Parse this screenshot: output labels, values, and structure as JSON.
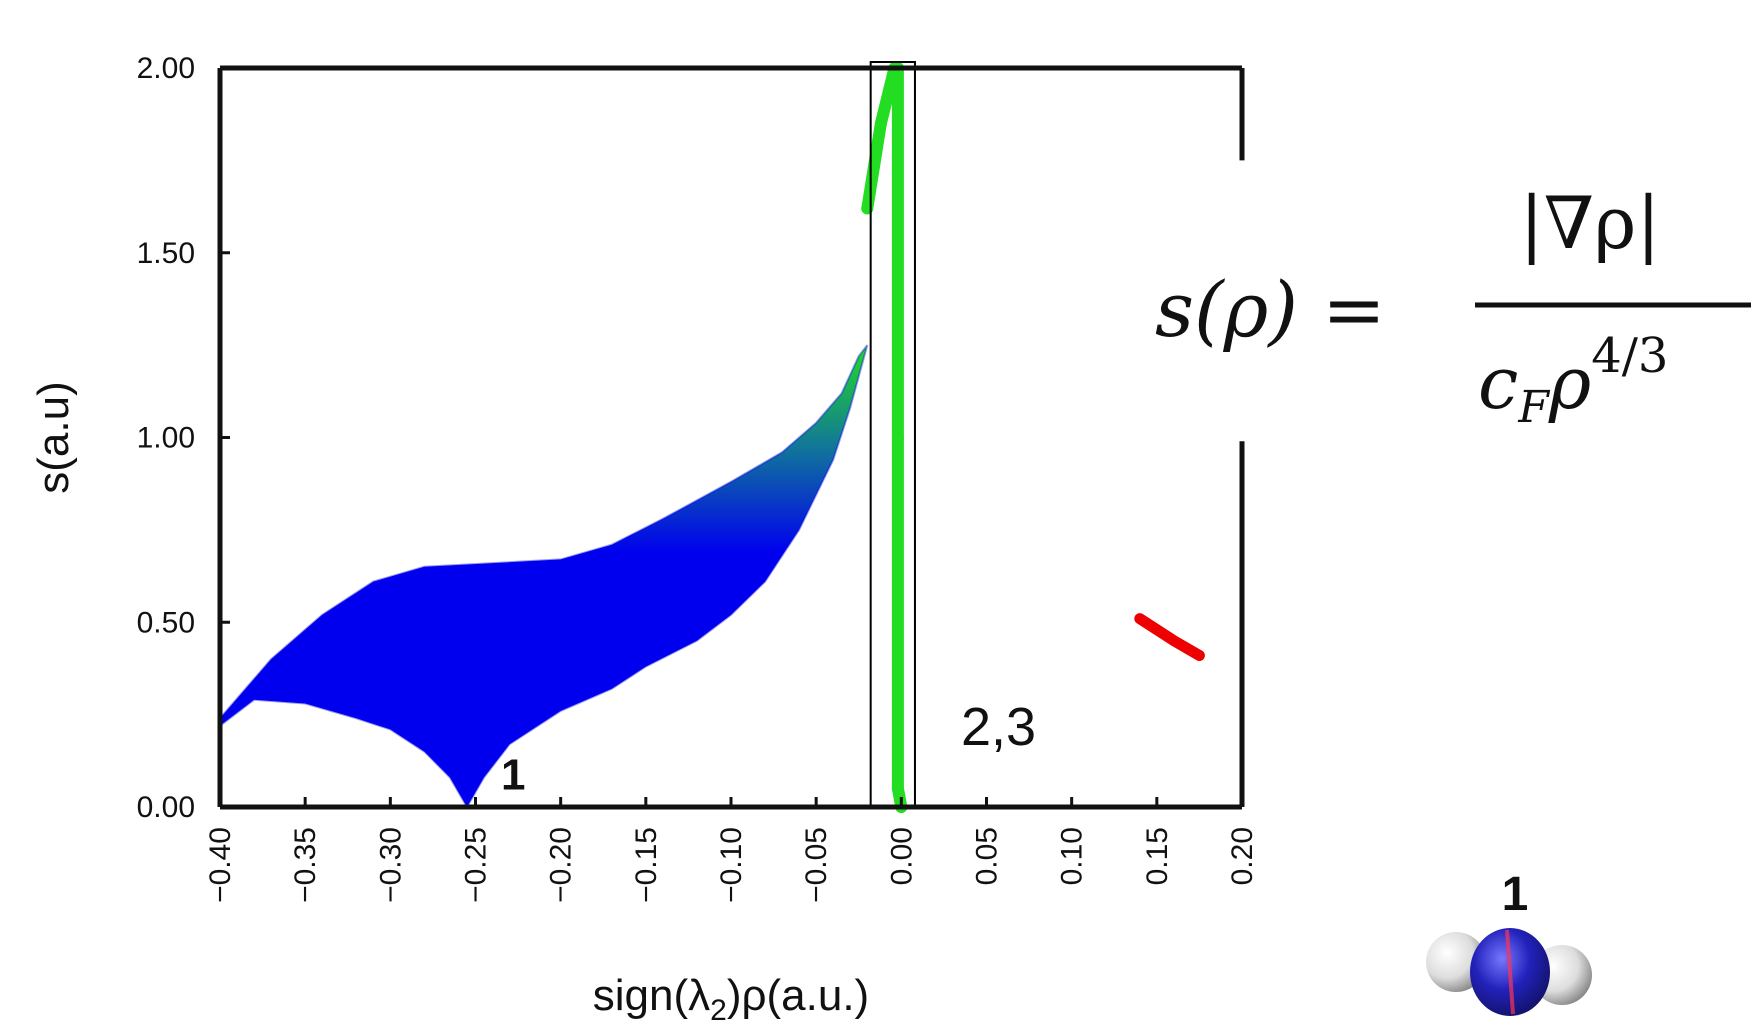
{
  "chart_data": {
    "type": "scatter",
    "title": "",
    "xlabel": "sign(λ2)ρ(a.u.)",
    "ylabel": "s(a.u)",
    "xlim": [
      -0.4,
      0.2
    ],
    "ylim": [
      0.0,
      2.0
    ],
    "x_ticks": [
      "-0.40",
      "-0.35",
      "-0.30",
      "-0.25",
      "-0.20",
      "-0.15",
      "-0.10",
      "-0.05",
      "0.00",
      "0.05",
      "0.10",
      "0.15",
      "0.20"
    ],
    "y_ticks": [
      "0.00",
      "0.50",
      "1.00",
      "1.50",
      "2.00"
    ],
    "grid": false,
    "series": [
      {
        "color": "#0000ee",
        "band_lower": [
          [
            -0.4,
            0.22
          ],
          [
            -0.38,
            0.29
          ],
          [
            -0.35,
            0.28
          ],
          [
            -0.32,
            0.24
          ],
          [
            -0.3,
            0.21
          ],
          [
            -0.28,
            0.15
          ],
          [
            -0.265,
            0.08
          ],
          [
            -0.255,
            0.0
          ],
          [
            -0.245,
            0.08
          ],
          [
            -0.23,
            0.17
          ],
          [
            -0.2,
            0.26
          ],
          [
            -0.17,
            0.32
          ],
          [
            -0.15,
            0.38
          ],
          [
            -0.12,
            0.45
          ],
          [
            -0.1,
            0.52
          ],
          [
            -0.08,
            0.61
          ],
          [
            -0.06,
            0.75
          ],
          [
            -0.04,
            0.94
          ],
          [
            -0.03,
            1.08
          ],
          [
            -0.02,
            1.25
          ]
        ],
        "band_upper": [
          [
            -0.4,
            0.24
          ],
          [
            -0.37,
            0.4
          ],
          [
            -0.34,
            0.52
          ],
          [
            -0.31,
            0.61
          ],
          [
            -0.28,
            0.65
          ],
          [
            -0.24,
            0.66
          ],
          [
            -0.2,
            0.67
          ],
          [
            -0.17,
            0.71
          ],
          [
            -0.14,
            0.78
          ],
          [
            -0.1,
            0.88
          ],
          [
            -0.07,
            0.96
          ],
          [
            -0.05,
            1.04
          ],
          [
            -0.035,
            1.12
          ],
          [
            -0.025,
            1.22
          ]
        ]
      },
      {
        "color": "#22dd22",
        "points": [
          [
            -0.02,
            1.62
          ],
          [
            -0.012,
            1.85
          ],
          [
            -0.004,
            2.0
          ],
          [
            -0.002,
            2.0
          ],
          [
            -0.002,
            1.0
          ],
          [
            -0.002,
            0.05
          ],
          [
            0.0,
            0.0
          ]
        ]
      },
      {
        "color": "#ee0000",
        "points": [
          [
            0.14,
            0.51
          ],
          [
            0.15,
            0.48
          ],
          [
            0.16,
            0.45
          ],
          [
            0.175,
            0.41
          ]
        ]
      }
    ],
    "annotations": [
      {
        "text": "1",
        "x": -0.235,
        "y": 0.08
      },
      {
        "text": "2,3",
        "x": 0.035,
        "y": 0.2
      }
    ]
  },
  "formula": {
    "lhs": "s(ρ) =",
    "numerator": "|∇ρ|",
    "denominator_c": "c",
    "denominator_sub": "F",
    "denominator_rho": "ρ",
    "denominator_exp": "4/3"
  },
  "molecule": {
    "label": "1"
  },
  "colors": {
    "attractive": "#0000ee",
    "weak": "#22dd22",
    "repulsive": "#ee0000",
    "axis": "#000000"
  }
}
